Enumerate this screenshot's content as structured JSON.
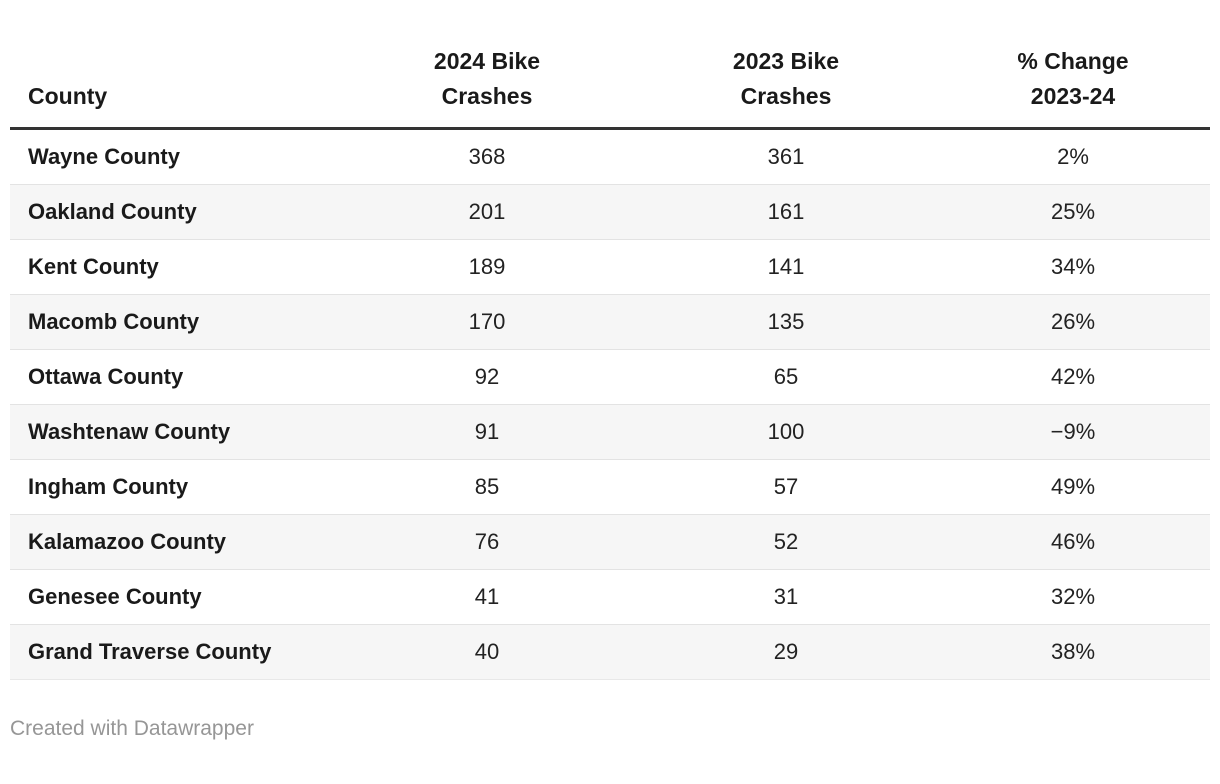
{
  "table": {
    "columns": {
      "county": "County",
      "crashes_2024": "2024 Bike\nCrashes",
      "crashes_2023": "2023 Bike\nCrashes",
      "pct_change": "% Change\n2023-24"
    },
    "rows": [
      {
        "county": "Wayne County",
        "crashes_2024": "368",
        "crashes_2023": "361",
        "pct_change": "2%"
      },
      {
        "county": "Oakland County",
        "crashes_2024": "201",
        "crashes_2023": "161",
        "pct_change": "25%"
      },
      {
        "county": "Kent County",
        "crashes_2024": "189",
        "crashes_2023": "141",
        "pct_change": "34%"
      },
      {
        "county": "Macomb County",
        "crashes_2024": "170",
        "crashes_2023": "135",
        "pct_change": "26%"
      },
      {
        "county": "Ottawa County",
        "crashes_2024": "92",
        "crashes_2023": "65",
        "pct_change": "42%"
      },
      {
        "county": "Washtenaw County",
        "crashes_2024": "91",
        "crashes_2023": "100",
        "pct_change": "−9%"
      },
      {
        "county": "Ingham County",
        "crashes_2024": "85",
        "crashes_2023": "57",
        "pct_change": "49%"
      },
      {
        "county": "Kalamazoo County",
        "crashes_2024": "76",
        "crashes_2023": "52",
        "pct_change": "46%"
      },
      {
        "county": "Genesee County",
        "crashes_2024": "41",
        "crashes_2023": "31",
        "pct_change": "32%"
      },
      {
        "county": "Grand Traverse County",
        "crashes_2024": "40",
        "crashes_2023": "29",
        "pct_change": "38%"
      }
    ]
  },
  "footer": {
    "credit": "Created with Datawrapper"
  },
  "colors": {
    "header_rule": "#333333",
    "row_stripe": "#f6f6f6",
    "row_separator": "#e3e3e3",
    "text": "#1a1a1a",
    "footer_text": "#969696"
  },
  "chart_data": {
    "type": "table",
    "title": "",
    "columns": [
      "County",
      "2024 Bike Crashes",
      "2023 Bike Crashes",
      "% Change 2023-24"
    ],
    "rows": [
      [
        "Wayne County",
        368,
        361,
        "2%"
      ],
      [
        "Oakland County",
        201,
        161,
        "25%"
      ],
      [
        "Kent County",
        189,
        141,
        "34%"
      ],
      [
        "Macomb County",
        170,
        135,
        "26%"
      ],
      [
        "Ottawa County",
        92,
        65,
        "42%"
      ],
      [
        "Washtenaw County",
        91,
        100,
        "−9%"
      ],
      [
        "Ingham County",
        85,
        57,
        "49%"
      ],
      [
        "Kalamazoo County",
        76,
        52,
        "46%"
      ],
      [
        "Genesee County",
        41,
        31,
        "32%"
      ],
      [
        "Grand Traverse County",
        40,
        29,
        "38%"
      ]
    ],
    "layout_hints": {
      "zebra_striping": true,
      "header_rule": true,
      "numeric_columns_centered": true
    }
  }
}
